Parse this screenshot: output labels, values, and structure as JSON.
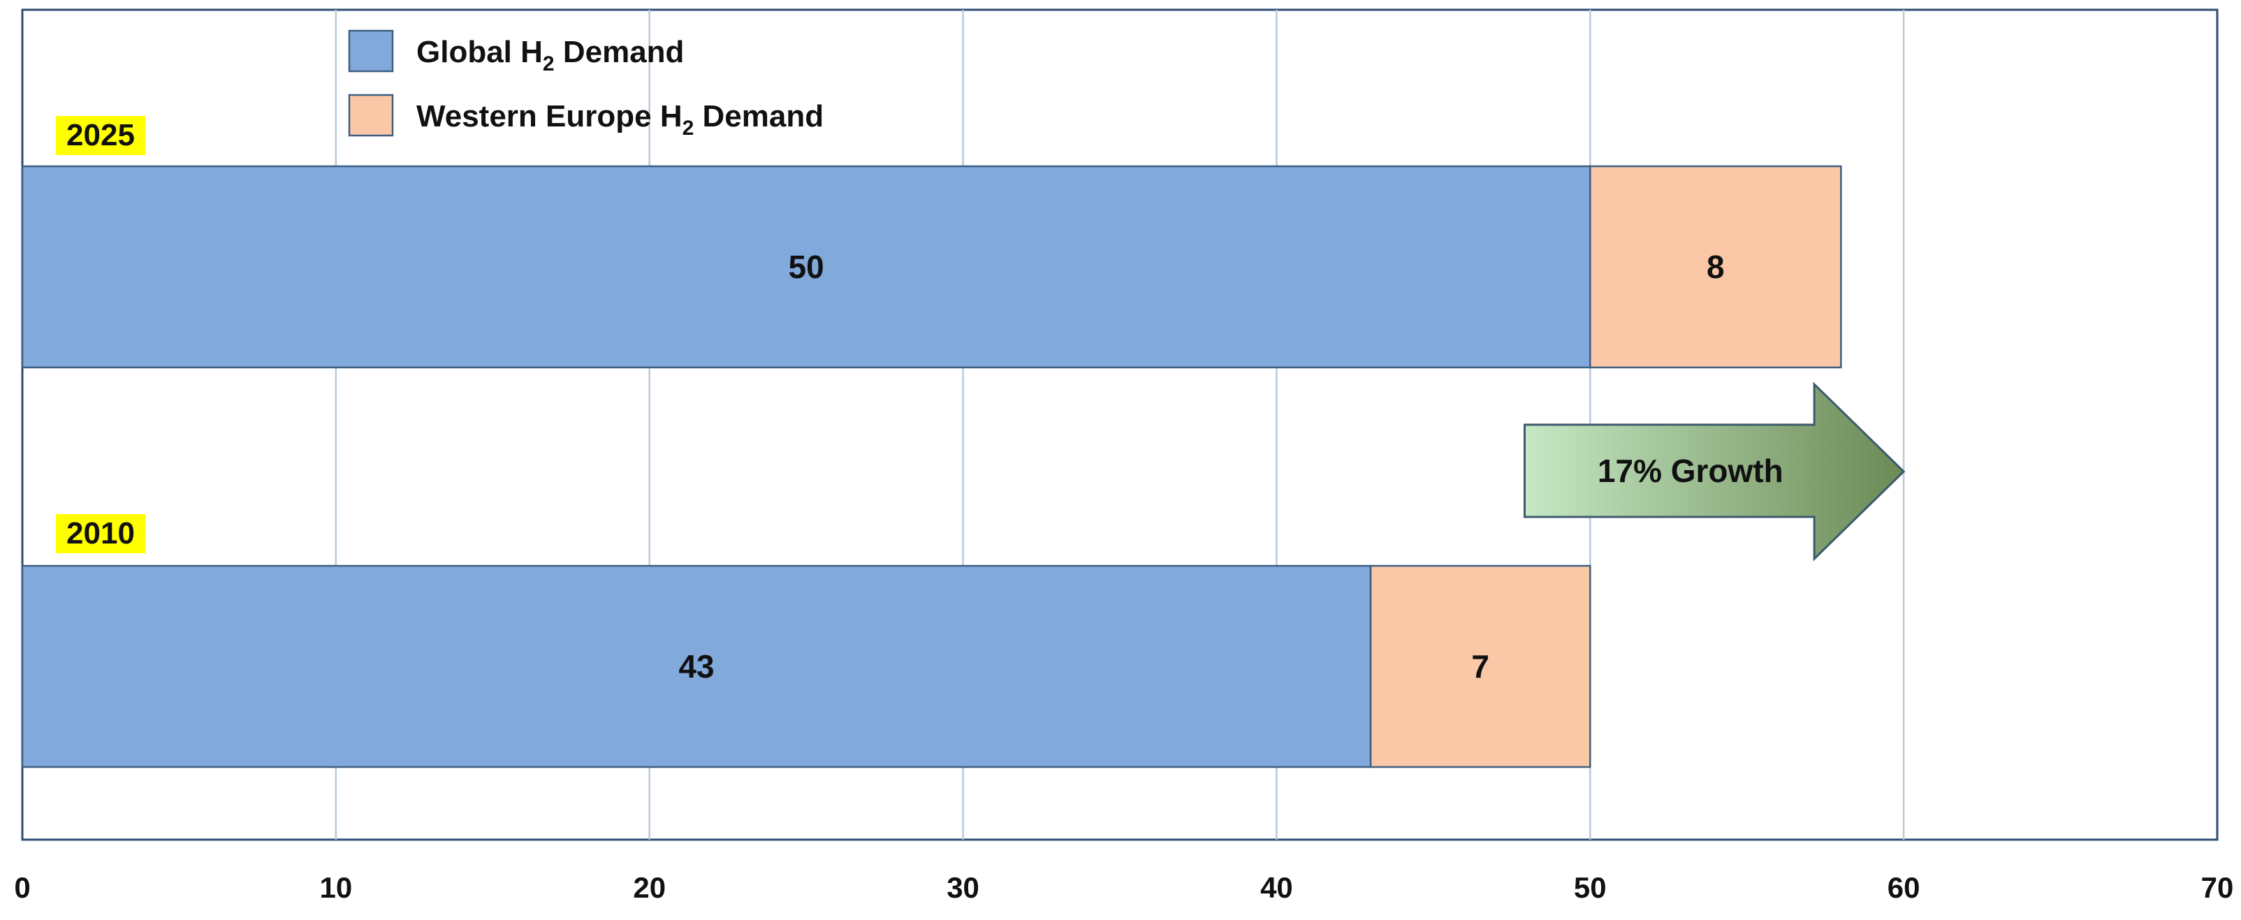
{
  "chart_data": {
    "type": "bar",
    "orientation": "horizontal",
    "stacked": true,
    "categories": [
      "2025",
      "2010"
    ],
    "series": [
      {
        "name": "Global H₂ Demand",
        "values": [
          50,
          43
        ],
        "color": "#81A9DC"
      },
      {
        "name": "Western Europe H₂ Demand",
        "values": [
          8,
          7
        ],
        "color": "#FAC8A6"
      }
    ],
    "data_labels": [
      [
        "50",
        "43"
      ],
      [
        "8",
        "7"
      ]
    ],
    "title": "",
    "xlabel": "",
    "ylabel": "",
    "xlim": [
      0,
      70
    ],
    "xticks": [
      0,
      10,
      20,
      30,
      40,
      50,
      60,
      70
    ],
    "grid": "vertical",
    "legend": {
      "position": "top-left",
      "entries": [
        {
          "prefix": "Global H",
          "sub": "2",
          "suffix": " Demand"
        },
        {
          "prefix": "Western Europe H",
          "sub": "2",
          "suffix": " Demand"
        }
      ]
    },
    "category_highlight_color": "#FFFF00",
    "annotation": {
      "text": "17% Growth",
      "shape": "arrow-right",
      "from_value": 48,
      "to_value": 60,
      "gradient": [
        "#C6E8C4",
        "#6B8A55"
      ]
    }
  }
}
